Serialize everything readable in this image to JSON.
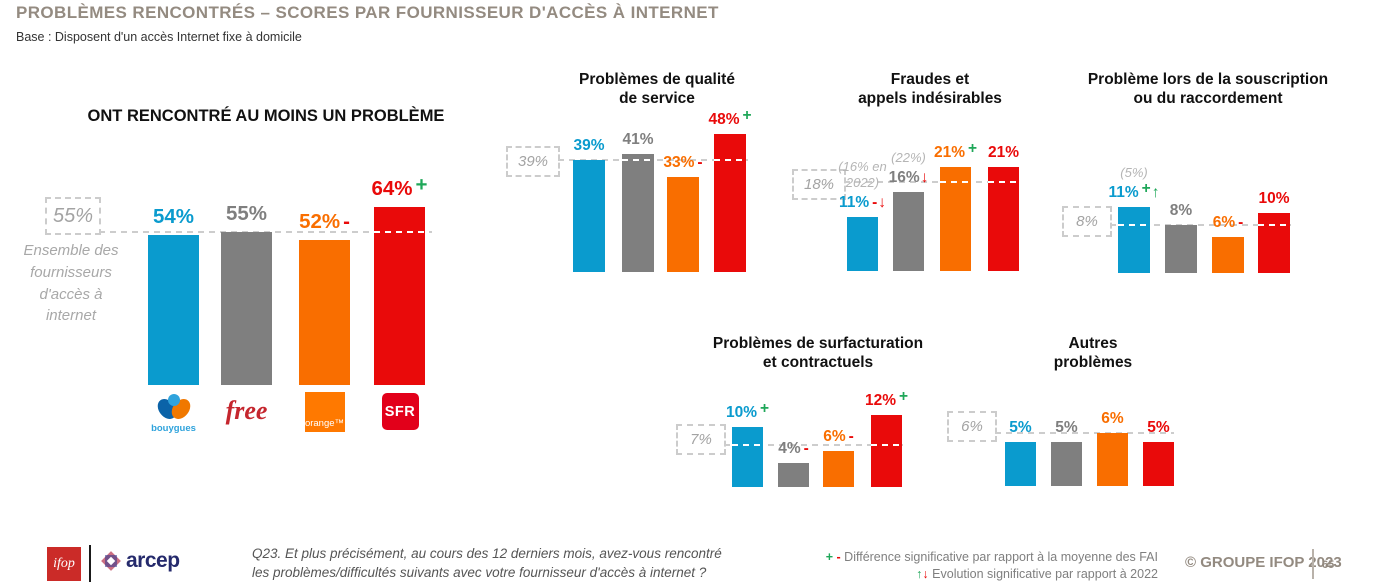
{
  "header": {
    "title": "PROBLÈMES RENCONTRÉS – SCORES PAR FOURNISSEUR D'ACCÈS À INTERNET",
    "subtitle": "Base : Disposent d'un accès Internet fixe à domicile"
  },
  "colors": {
    "bars": [
      "#0A9BCE",
      "#7F7F7F",
      "#F96E00",
      "#E90A0A"
    ],
    "plus": "#1FA759",
    "minus": "#E90A0A",
    "annotation": "#B5B5B5",
    "average_text": "#A3A3A3",
    "dash_gray": "#CDCDCD",
    "dash_white": "#FFFFFF",
    "title_gray": "#948B81"
  },
  "providers": [
    "Bouygues",
    "Free",
    "Orange",
    "SFR"
  ],
  "logos": {
    "bouygues": "bouygues",
    "free": "free",
    "orange": "orange™",
    "sfr": "SFR"
  },
  "chart_data": [
    {
      "id": "main",
      "type": "bar",
      "title": "ONT RENCONTRÉ AU MOINS UN PROBLÈME",
      "categories": [
        "Bouygues",
        "Free",
        "Orange",
        "SFR"
      ],
      "values": [
        54,
        55,
        52,
        64
      ],
      "value_labels": [
        "54%",
        "55%",
        "52%",
        "64%"
      ],
      "diff_vs_average": [
        "",
        "",
        "-",
        "+"
      ],
      "evolution_vs_2022": [
        "",
        "",
        "",
        ""
      ],
      "annotations": [
        "",
        "",
        "",
        ""
      ],
      "average": 55,
      "average_label": "55%",
      "average_caption": "Ensemble des\nfournisseurs\nd'accès à\ninternet",
      "ylim": [
        0,
        70
      ]
    },
    {
      "id": "qualite",
      "type": "bar",
      "title": "Problèmes de qualité\nde service",
      "categories": [
        "Bouygues",
        "Free",
        "Orange",
        "SFR"
      ],
      "values": [
        39,
        41,
        33,
        48
      ],
      "value_labels": [
        "39%",
        "41%",
        "33%",
        "48%"
      ],
      "diff_vs_average": [
        "",
        "",
        "-",
        "+"
      ],
      "evolution_vs_2022": [
        "",
        "",
        "",
        ""
      ],
      "annotations": [
        "",
        "",
        "",
        ""
      ],
      "average": 39,
      "average_label": "39%",
      "ylim": [
        0,
        50
      ]
    },
    {
      "id": "fraudes",
      "type": "bar",
      "title": "Fraudes et\nappels indésirables",
      "categories": [
        "Bouygues",
        "Free",
        "Orange",
        "SFR"
      ],
      "values": [
        11,
        16,
        21,
        21
      ],
      "value_labels": [
        "11%",
        "16%",
        "21%",
        "21%"
      ],
      "diff_vs_average": [
        "-",
        "",
        "+",
        ""
      ],
      "evolution_vs_2022": [
        "down",
        "down",
        "",
        ""
      ],
      "annotations": [
        "(16% en\n2022)",
        "(22%)",
        "",
        ""
      ],
      "average": 18,
      "average_label": "18%",
      "ylim": [
        0,
        25
      ]
    },
    {
      "id": "souscription",
      "type": "bar",
      "title": "Problème lors de la souscription\nou du raccordement",
      "categories": [
        "Bouygues",
        "Free",
        "Orange",
        "SFR"
      ],
      "values": [
        11,
        8,
        6,
        10
      ],
      "value_labels": [
        "11%",
        "8%",
        "6%",
        "10%"
      ],
      "diff_vs_average": [
        "+",
        "",
        "-",
        ""
      ],
      "evolution_vs_2022": [
        "up",
        "",
        "",
        ""
      ],
      "annotations": [
        "(5%)",
        "",
        "",
        ""
      ],
      "average": 8,
      "average_label": "8%",
      "ylim": [
        0,
        12
      ]
    },
    {
      "id": "surfacturation",
      "type": "bar",
      "title": "Problèmes de surfacturation\net contractuels",
      "categories": [
        "Bouygues",
        "Free",
        "Orange",
        "SFR"
      ],
      "values": [
        10,
        4,
        6,
        12
      ],
      "value_labels": [
        "10%",
        "4%",
        "6%",
        "12%"
      ],
      "diff_vs_average": [
        "+",
        "-",
        "-",
        "+"
      ],
      "evolution_vs_2022": [
        "",
        "",
        "",
        ""
      ],
      "annotations": [
        "",
        "",
        "",
        ""
      ],
      "average": 7,
      "average_label": "7%",
      "ylim": [
        0,
        14
      ]
    },
    {
      "id": "autres",
      "type": "bar",
      "title": "Autres\nproblèmes",
      "categories": [
        "Bouygues",
        "Free",
        "Orange",
        "SFR"
      ],
      "values": [
        5,
        5,
        6,
        5
      ],
      "value_labels": [
        "5%",
        "5%",
        "6%",
        "5%"
      ],
      "diff_vs_average": [
        "",
        "",
        "",
        ""
      ],
      "evolution_vs_2022": [
        "",
        "",
        "",
        ""
      ],
      "annotations": [
        "",
        "",
        "",
        ""
      ],
      "average": 6,
      "average_label": "6%",
      "ylim": [
        0,
        8
      ]
    }
  ],
  "footer": {
    "ifop_logo": "ifop",
    "arcep_logo": "arcep",
    "question": "Q23. Et plus précisément, au cours des 12 derniers mois, avez-vous rencontré\nles problèmes/difficultés suivants avec votre fournisseur d'accès à internet ?",
    "legend_diff": {
      "plus": "+",
      "minus": "-",
      "text": "Différence significative par rapport à la moyenne des FAI"
    },
    "legend_evo": {
      "up": "↑",
      "down": "↓",
      "text": "Evolution significative par rapport à 2022"
    },
    "copyright": "© GROUPE IFOP 2023",
    "page": "65"
  }
}
